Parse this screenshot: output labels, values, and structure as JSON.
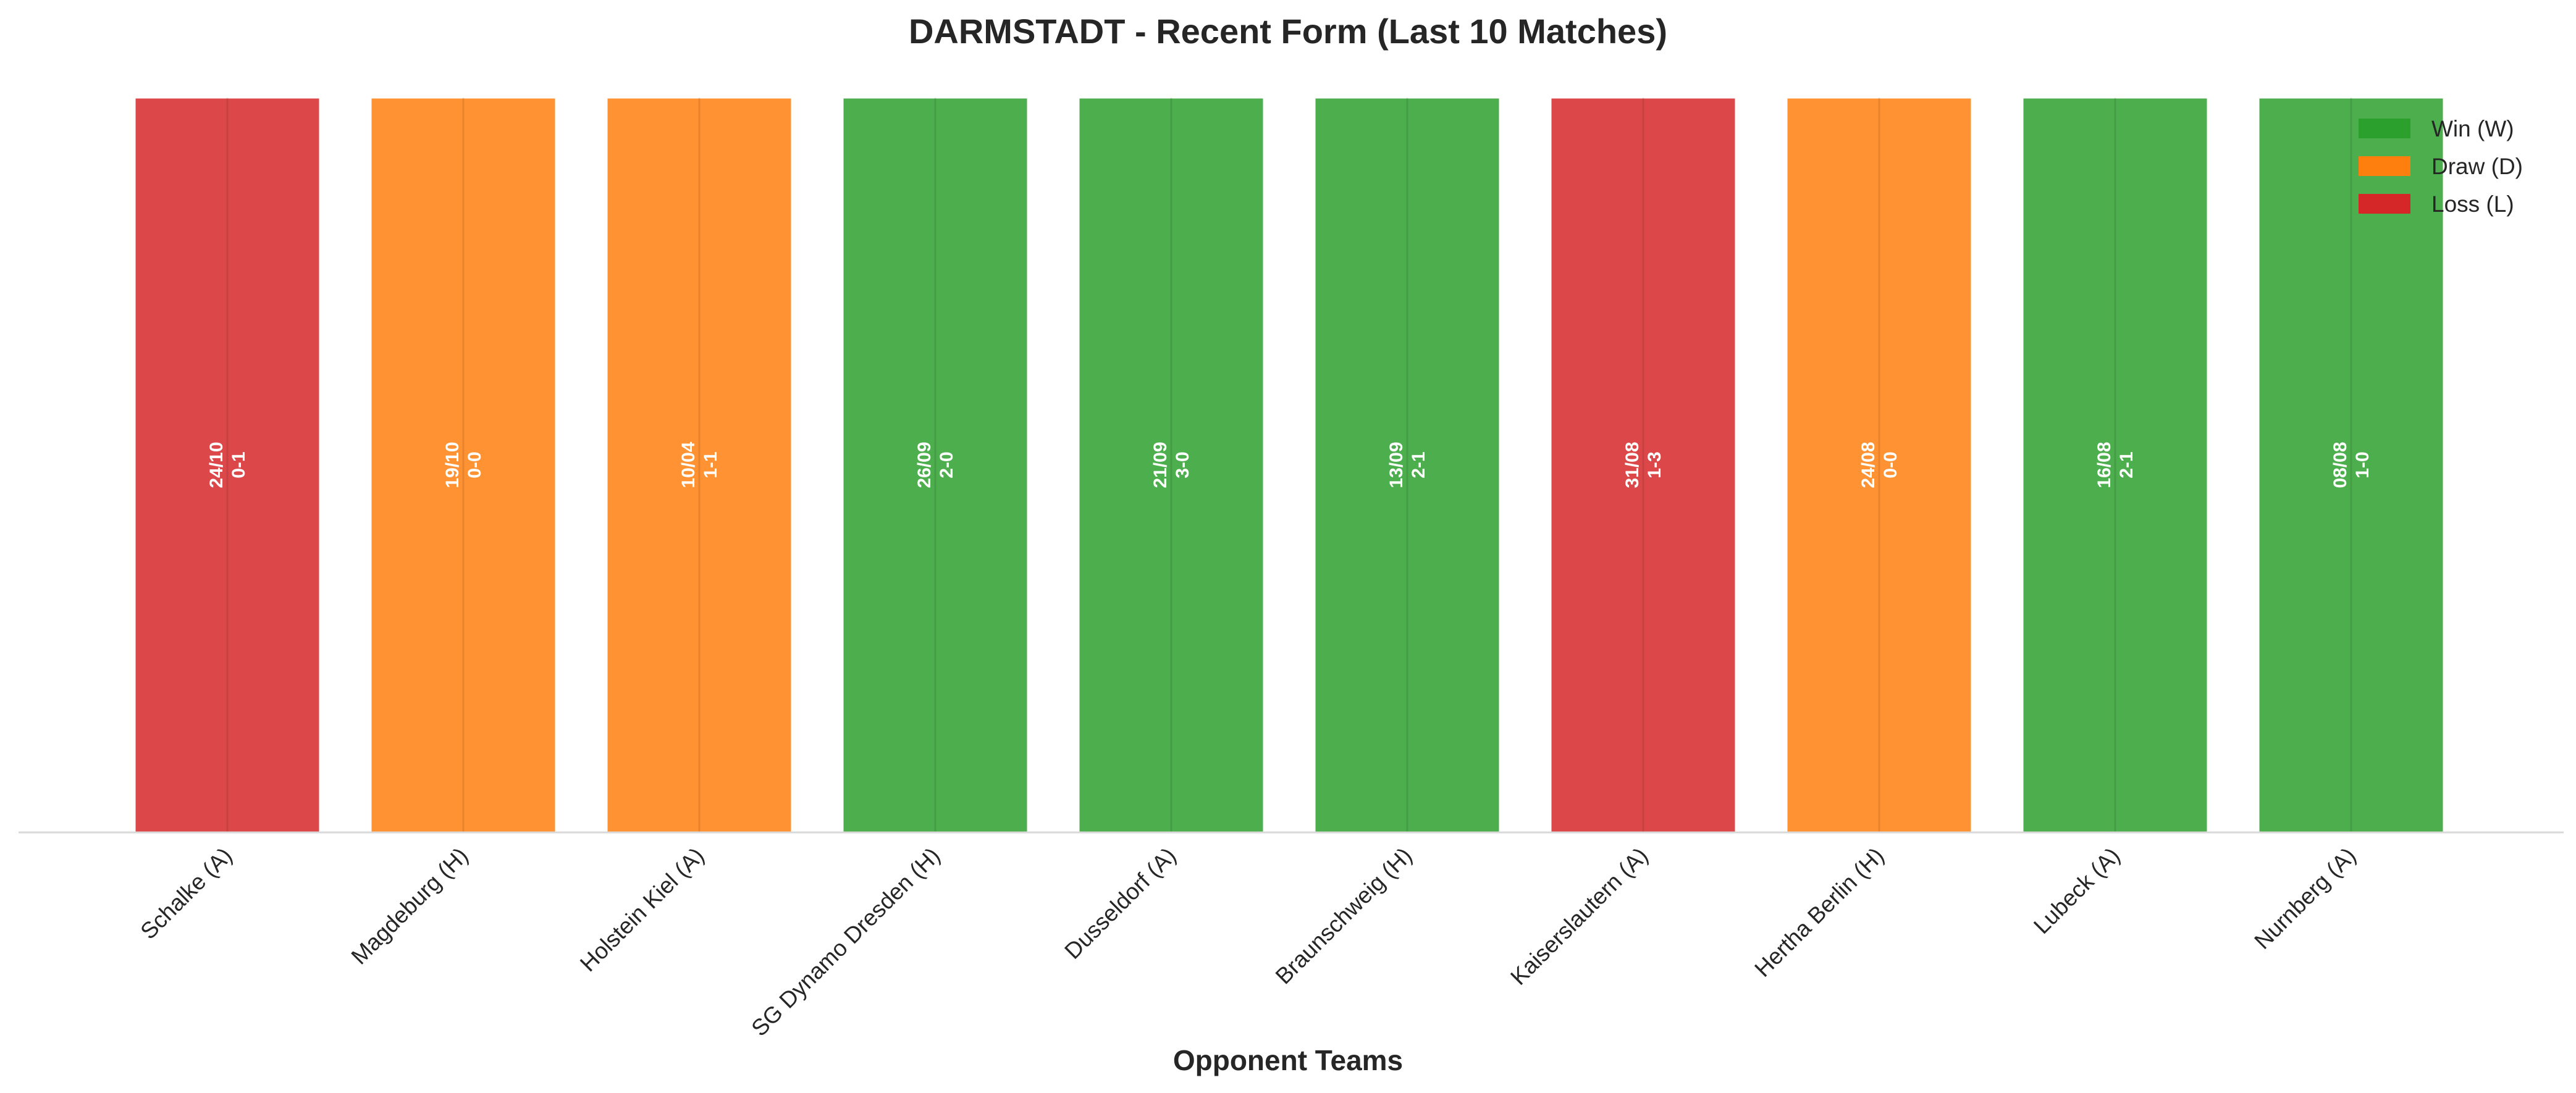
{
  "chart_data": {
    "type": "bar",
    "title": "DARMSTADT - Recent Form (Last 10 Matches)",
    "xlabel": "Opponent Teams",
    "ylabel": "",
    "ylim": [
      0,
      1
    ],
    "grid": true,
    "legend_position": "top-right",
    "categories": [
      "Schalke (A)",
      "Magdeburg (H)",
      "Holstein Kiel (A)",
      "SG Dynamo Dresden (H)",
      "Dusseldorf (A)",
      "Braunschweig (H)",
      "Kaiserslautern (A)",
      "Hertha Berlin (H)",
      "Lubeck (A)",
      "Nurnberg (A)"
    ],
    "values": [
      1,
      1,
      1,
      1,
      1,
      1,
      1,
      1,
      1,
      1
    ],
    "results": [
      "L",
      "D",
      "D",
      "W",
      "W",
      "W",
      "L",
      "D",
      "W",
      "W"
    ],
    "dates": [
      "24/10",
      "19/10",
      "10/04",
      "26/09",
      "21/09",
      "13/09",
      "31/08",
      "24/08",
      "16/08",
      "08/08"
    ],
    "scores": [
      "0-1",
      "0-0",
      "1-1",
      "2-0",
      "3-0",
      "2-1",
      "1-3",
      "0-0",
      "2-1",
      "1-0"
    ],
    "legend": [
      {
        "key": "W",
        "label": "Win (W)",
        "color": "#2ca02c"
      },
      {
        "key": "D",
        "label": "Draw (D)",
        "color": "#ff7f0e"
      },
      {
        "key": "L",
        "label": "Loss (L)",
        "color": "#d62728"
      }
    ],
    "colors": {
      "W": "#4cae4c",
      "D": "#ff9233",
      "L": "#dc4849"
    }
  }
}
